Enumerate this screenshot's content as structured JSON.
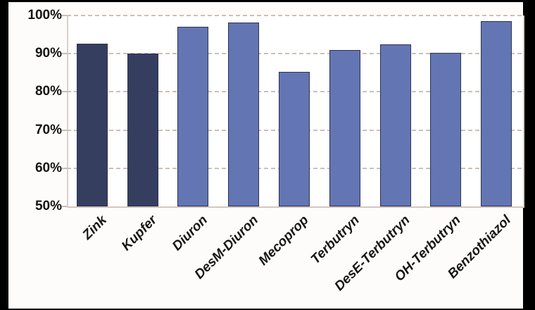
{
  "chart_data": {
    "type": "bar",
    "title": "",
    "xlabel": "",
    "ylabel": "",
    "categories": [
      "Zink",
      "Kupfer",
      "Diuron",
      "DesM-Diuron",
      "Mecoprop",
      "Terbutryn",
      "DesE-Terbutryn",
      "OH-Terbutryn",
      "Benzothiazol"
    ],
    "values": [
      92.7,
      90.0,
      97.0,
      98.2,
      85.2,
      91.0,
      92.5,
      90.3,
      98.5
    ],
    "bar_tones": [
      "dark",
      "dark",
      "light",
      "light",
      "light",
      "light",
      "light",
      "light",
      "light"
    ],
    "tone_colors": {
      "dark": "#363E60",
      "light": "#6376B3"
    },
    "bar_border_color": "#2B3254",
    "ylim": [
      50,
      100
    ],
    "ytick_step": 10,
    "ytick_labels": [
      "100%",
      "90%",
      "80%",
      "70%",
      "60%",
      "50%"
    ],
    "grid": "horizontal-dashed",
    "gridline_color": "#CCC0B8",
    "frame_color": "#DBD0C8",
    "legend": "none",
    "x_label_rotation_deg": 45,
    "x_label_style": "bold-italic",
    "plot_background": "#FFFFFF",
    "figure_background": "#FDFCFA",
    "outer_background": "#000000"
  }
}
